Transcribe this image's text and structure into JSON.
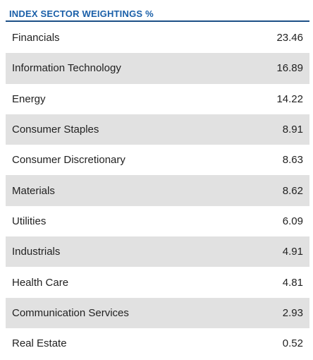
{
  "header": {
    "title": "INDEX SECTOR WEIGHTINGS %"
  },
  "colors": {
    "title": "#1a5fa8",
    "rule": "#1d4f86",
    "shaded_row": "#e1e1e1"
  },
  "table": {
    "rows": [
      {
        "sector": "Financials",
        "weight": "23.46"
      },
      {
        "sector": "Information Technology",
        "weight": "16.89"
      },
      {
        "sector": "Energy",
        "weight": "14.22"
      },
      {
        "sector": "Consumer Staples",
        "weight": "8.91"
      },
      {
        "sector": "Consumer Discretionary",
        "weight": "8.63"
      },
      {
        "sector": "Materials",
        "weight": "8.62"
      },
      {
        "sector": "Utilities",
        "weight": "6.09"
      },
      {
        "sector": "Industrials",
        "weight": "4.91"
      },
      {
        "sector": "Health Care",
        "weight": "4.81"
      },
      {
        "sector": "Communication Services",
        "weight": "2.93"
      },
      {
        "sector": "Real Estate",
        "weight": "0.52"
      }
    ]
  }
}
